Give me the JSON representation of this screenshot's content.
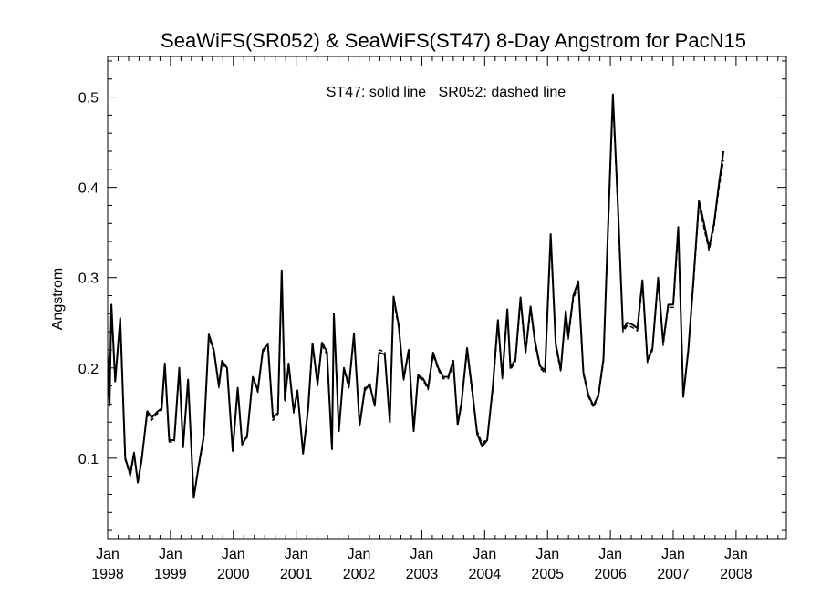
{
  "chart_data": {
    "type": "line",
    "title": "SeaWiFS(SR052) & SeaWiFS(ST47) 8-Day Angstrom for PacN15",
    "annotation": "ST47: solid line   SR052: dashed line",
    "xlabel": "",
    "ylabel": "Angstrom",
    "ylim": [
      0.01,
      0.545
    ],
    "yticks": [
      0.1,
      0.2,
      0.3,
      0.4,
      0.5
    ],
    "ytick_labels": [
      "0.1",
      "0.2",
      "0.3",
      "0.4",
      "0.5"
    ],
    "xlim": [
      1998.0,
      2008.8
    ],
    "xticks": [
      {
        "x": 1998.0,
        "label": "Jan",
        "year": "1998"
      },
      {
        "x": 1999.0,
        "label": "Jan",
        "year": "1999"
      },
      {
        "x": 2000.0,
        "label": "Jan",
        "year": "2000"
      },
      {
        "x": 2001.0,
        "label": "Jan",
        "year": "2001"
      },
      {
        "x": 2002.0,
        "label": "Jan",
        "year": "2002"
      },
      {
        "x": 2003.0,
        "label": "Jan",
        "year": "2003"
      },
      {
        "x": 2004.0,
        "label": "Jan",
        "year": "2004"
      },
      {
        "x": 2005.0,
        "label": "Jan",
        "year": "2005"
      },
      {
        "x": 2006.0,
        "label": "Jan",
        "year": "2006"
      },
      {
        "x": 2007.0,
        "label": "Jan",
        "year": "2007"
      },
      {
        "x": 2008.0,
        "label": "Jan",
        "year": "2008"
      }
    ],
    "series": [
      {
        "name": "ST47",
        "style": "solid",
        "color": "#000000",
        "points": [
          [
            1997.96,
            0.272
          ],
          [
            1998.03,
            0.158
          ],
          [
            1998.06,
            0.27
          ],
          [
            1998.12,
            0.185
          ],
          [
            1998.2,
            0.255
          ],
          [
            1998.28,
            0.1
          ],
          [
            1998.36,
            0.082
          ],
          [
            1998.42,
            0.106
          ],
          [
            1998.48,
            0.073
          ],
          [
            1998.54,
            0.097
          ],
          [
            1998.63,
            0.152
          ],
          [
            1998.7,
            0.145
          ],
          [
            1998.8,
            0.152
          ],
          [
            1998.86,
            0.155
          ],
          [
            1998.91,
            0.205
          ],
          [
            1998.98,
            0.12
          ],
          [
            1999.06,
            0.12
          ],
          [
            1999.14,
            0.2
          ],
          [
            1999.2,
            0.112
          ],
          [
            1999.28,
            0.187
          ],
          [
            1999.37,
            0.056
          ],
          [
            1999.45,
            0.092
          ],
          [
            1999.53,
            0.125
          ],
          [
            1999.61,
            0.237
          ],
          [
            1999.69,
            0.22
          ],
          [
            1999.77,
            0.18
          ],
          [
            1999.82,
            0.208
          ],
          [
            1999.9,
            0.2
          ],
          [
            1999.99,
            0.108
          ],
          [
            2000.07,
            0.178
          ],
          [
            2000.14,
            0.115
          ],
          [
            2000.22,
            0.125
          ],
          [
            2000.31,
            0.19
          ],
          [
            2000.39,
            0.175
          ],
          [
            2000.47,
            0.22
          ],
          [
            2000.55,
            0.226
          ],
          [
            2000.63,
            0.145
          ],
          [
            2000.71,
            0.15
          ],
          [
            2000.77,
            0.308
          ],
          [
            2000.82,
            0.165
          ],
          [
            2000.88,
            0.205
          ],
          [
            2000.96,
            0.152
          ],
          [
            2001.02,
            0.175
          ],
          [
            2001.11,
            0.105
          ],
          [
            2001.19,
            0.155
          ],
          [
            2001.26,
            0.227
          ],
          [
            2001.34,
            0.182
          ],
          [
            2001.41,
            0.228
          ],
          [
            2001.49,
            0.218
          ],
          [
            2001.57,
            0.11
          ],
          [
            2001.6,
            0.26
          ],
          [
            2001.68,
            0.13
          ],
          [
            2001.76,
            0.2
          ],
          [
            2001.84,
            0.18
          ],
          [
            2001.92,
            0.238
          ],
          [
            2002.01,
            0.136
          ],
          [
            2002.09,
            0.175
          ],
          [
            2002.17,
            0.182
          ],
          [
            2002.25,
            0.158
          ],
          [
            2002.32,
            0.217
          ],
          [
            2002.41,
            0.215
          ],
          [
            2002.49,
            0.14
          ],
          [
            2002.55,
            0.279
          ],
          [
            2002.63,
            0.248
          ],
          [
            2002.71,
            0.188
          ],
          [
            2002.79,
            0.22
          ],
          [
            2002.87,
            0.13
          ],
          [
            2002.94,
            0.192
          ],
          [
            2003.02,
            0.188
          ],
          [
            2003.1,
            0.178
          ],
          [
            2003.18,
            0.217
          ],
          [
            2003.26,
            0.2
          ],
          [
            2003.34,
            0.19
          ],
          [
            2003.42,
            0.19
          ],
          [
            2003.5,
            0.208
          ],
          [
            2003.57,
            0.137
          ],
          [
            2003.63,
            0.16
          ],
          [
            2003.72,
            0.222
          ],
          [
            2003.8,
            0.176
          ],
          [
            2003.88,
            0.127
          ],
          [
            2003.96,
            0.113
          ],
          [
            2004.04,
            0.12
          ],
          [
            2004.13,
            0.18
          ],
          [
            2004.21,
            0.253
          ],
          [
            2004.28,
            0.19
          ],
          [
            2004.36,
            0.265
          ],
          [
            2004.41,
            0.2
          ],
          [
            2004.49,
            0.21
          ],
          [
            2004.57,
            0.278
          ],
          [
            2004.65,
            0.218
          ],
          [
            2004.73,
            0.268
          ],
          [
            2004.8,
            0.23
          ],
          [
            2004.88,
            0.202
          ],
          [
            2004.96,
            0.197
          ],
          [
            2005.05,
            0.348
          ],
          [
            2005.13,
            0.227
          ],
          [
            2005.21,
            0.198
          ],
          [
            2005.29,
            0.263
          ],
          [
            2005.33,
            0.235
          ],
          [
            2005.41,
            0.28
          ],
          [
            2005.49,
            0.296
          ],
          [
            2005.57,
            0.195
          ],
          [
            2005.65,
            0.17
          ],
          [
            2005.73,
            0.158
          ],
          [
            2005.81,
            0.17
          ],
          [
            2005.89,
            0.21
          ],
          [
            2005.96,
            0.35
          ],
          [
            2006.04,
            0.503
          ],
          [
            2006.12,
            0.38
          ],
          [
            2006.2,
            0.243
          ],
          [
            2006.27,
            0.25
          ],
          [
            2006.35,
            0.248
          ],
          [
            2006.43,
            0.244
          ],
          [
            2006.51,
            0.297
          ],
          [
            2006.59,
            0.208
          ],
          [
            2006.67,
            0.222
          ],
          [
            2006.76,
            0.3
          ],
          [
            2006.84,
            0.228
          ],
          [
            2006.92,
            0.27
          ],
          [
            2007.0,
            0.27
          ],
          [
            2007.08,
            0.356
          ],
          [
            2007.16,
            0.168
          ],
          [
            2007.24,
            0.22
          ],
          [
            2007.32,
            0.295
          ],
          [
            2007.41,
            0.385
          ],
          [
            2007.49,
            0.36
          ],
          [
            2007.57,
            0.333
          ],
          [
            2007.65,
            0.36
          ],
          [
            2007.73,
            0.405
          ],
          [
            2007.8,
            0.44
          ]
        ]
      },
      {
        "name": "SR052",
        "style": "dashed",
        "color": "#000000",
        "points": [
          [
            1997.96,
            0.27
          ],
          [
            1998.03,
            0.16
          ],
          [
            1998.06,
            0.268
          ],
          [
            1998.12,
            0.187
          ],
          [
            1998.2,
            0.252
          ],
          [
            1998.28,
            0.098
          ],
          [
            1998.36,
            0.08
          ],
          [
            1998.42,
            0.104
          ],
          [
            1998.48,
            0.075
          ],
          [
            1998.54,
            0.1
          ],
          [
            1998.63,
            0.148
          ],
          [
            1998.7,
            0.142
          ],
          [
            1998.8,
            0.15
          ],
          [
            1998.86,
            0.153
          ],
          [
            1998.91,
            0.2
          ],
          [
            1998.98,
            0.118
          ],
          [
            1999.06,
            0.118
          ],
          [
            1999.14,
            0.198
          ],
          [
            1999.2,
            0.114
          ],
          [
            1999.28,
            0.184
          ],
          [
            1999.37,
            0.058
          ],
          [
            1999.45,
            0.09
          ],
          [
            1999.53,
            0.122
          ],
          [
            1999.61,
            0.234
          ],
          [
            1999.69,
            0.218
          ],
          [
            1999.77,
            0.178
          ],
          [
            1999.82,
            0.205
          ],
          [
            1999.9,
            0.198
          ],
          [
            1999.99,
            0.11
          ],
          [
            2000.07,
            0.175
          ],
          [
            2000.14,
            0.117
          ],
          [
            2000.22,
            0.123
          ],
          [
            2000.31,
            0.188
          ],
          [
            2000.39,
            0.173
          ],
          [
            2000.47,
            0.218
          ],
          [
            2000.55,
            0.224
          ],
          [
            2000.63,
            0.142
          ],
          [
            2000.71,
            0.148
          ],
          [
            2000.77,
            0.304
          ],
          [
            2000.82,
            0.163
          ],
          [
            2000.88,
            0.202
          ],
          [
            2000.96,
            0.15
          ],
          [
            2001.02,
            0.173
          ],
          [
            2001.11,
            0.107
          ],
          [
            2001.19,
            0.152
          ],
          [
            2001.26,
            0.224
          ],
          [
            2001.34,
            0.18
          ],
          [
            2001.41,
            0.225
          ],
          [
            2001.49,
            0.215
          ],
          [
            2001.57,
            0.112
          ],
          [
            2001.6,
            0.256
          ],
          [
            2001.68,
            0.132
          ],
          [
            2001.76,
            0.198
          ],
          [
            2001.84,
            0.178
          ],
          [
            2001.92,
            0.235
          ],
          [
            2002.01,
            0.138
          ],
          [
            2002.09,
            0.178
          ],
          [
            2002.17,
            0.18
          ],
          [
            2002.25,
            0.16
          ],
          [
            2002.32,
            0.22
          ],
          [
            2002.41,
            0.218
          ],
          [
            2002.49,
            0.142
          ],
          [
            2002.55,
            0.275
          ],
          [
            2002.63,
            0.245
          ],
          [
            2002.71,
            0.186
          ],
          [
            2002.79,
            0.218
          ],
          [
            2002.87,
            0.132
          ],
          [
            2002.94,
            0.19
          ],
          [
            2003.02,
            0.186
          ],
          [
            2003.1,
            0.176
          ],
          [
            2003.18,
            0.214
          ],
          [
            2003.26,
            0.198
          ],
          [
            2003.34,
            0.188
          ],
          [
            2003.42,
            0.188
          ],
          [
            2003.5,
            0.205
          ],
          [
            2003.57,
            0.14
          ],
          [
            2003.63,
            0.163
          ],
          [
            2003.72,
            0.218
          ],
          [
            2003.8,
            0.172
          ],
          [
            2003.88,
            0.13
          ],
          [
            2003.96,
            0.116
          ],
          [
            2004.04,
            0.122
          ],
          [
            2004.13,
            0.176
          ],
          [
            2004.21,
            0.248
          ],
          [
            2004.28,
            0.188
          ],
          [
            2004.36,
            0.26
          ],
          [
            2004.41,
            0.198
          ],
          [
            2004.49,
            0.207
          ],
          [
            2004.57,
            0.274
          ],
          [
            2004.65,
            0.215
          ],
          [
            2004.73,
            0.264
          ],
          [
            2004.8,
            0.227
          ],
          [
            2004.88,
            0.2
          ],
          [
            2004.96,
            0.194
          ],
          [
            2005.05,
            0.343
          ],
          [
            2005.13,
            0.224
          ],
          [
            2005.21,
            0.196
          ],
          [
            2005.29,
            0.26
          ],
          [
            2005.33,
            0.232
          ],
          [
            2005.41,
            0.276
          ],
          [
            2005.49,
            0.292
          ],
          [
            2005.57,
            0.193
          ],
          [
            2005.65,
            0.168
          ],
          [
            2005.73,
            0.156
          ],
          [
            2005.81,
            0.168
          ],
          [
            2005.89,
            0.207
          ],
          [
            2005.96,
            0.345
          ],
          [
            2006.04,
            0.495
          ],
          [
            2006.12,
            0.375
          ],
          [
            2006.2,
            0.24
          ],
          [
            2006.27,
            0.247
          ],
          [
            2006.35,
            0.245
          ],
          [
            2006.43,
            0.241
          ],
          [
            2006.51,
            0.293
          ],
          [
            2006.59,
            0.206
          ],
          [
            2006.67,
            0.22
          ],
          [
            2006.76,
            0.296
          ],
          [
            2006.84,
            0.225
          ],
          [
            2006.92,
            0.267
          ],
          [
            2007.0,
            0.267
          ],
          [
            2007.08,
            0.35
          ],
          [
            2007.16,
            0.17
          ],
          [
            2007.24,
            0.218
          ],
          [
            2007.32,
            0.29
          ],
          [
            2007.41,
            0.38
          ],
          [
            2007.49,
            0.355
          ],
          [
            2007.57,
            0.33
          ],
          [
            2007.65,
            0.356
          ],
          [
            2007.73,
            0.4
          ],
          [
            2007.8,
            0.43
          ]
        ]
      }
    ]
  }
}
